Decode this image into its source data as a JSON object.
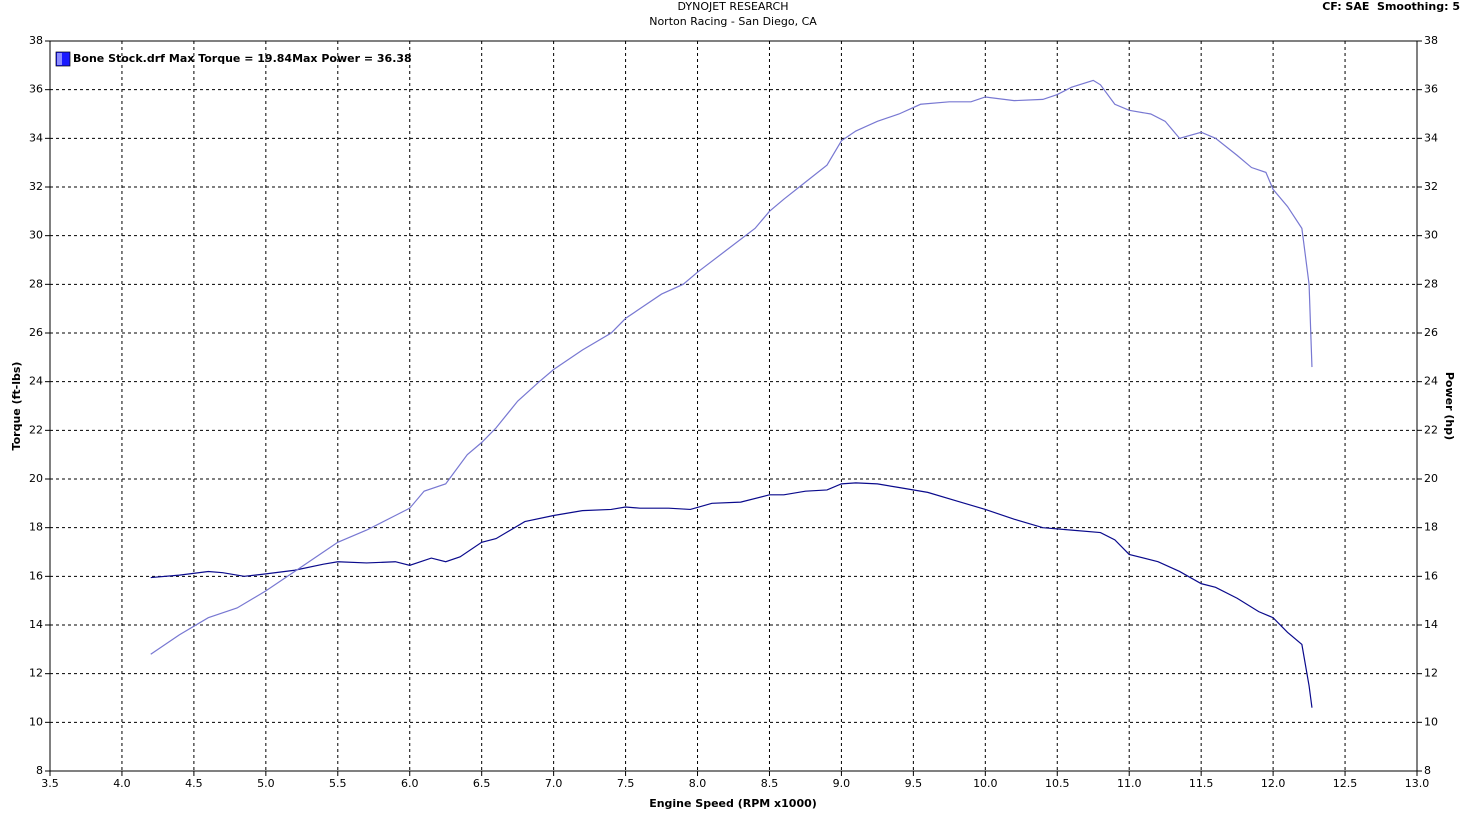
{
  "chart_data": {
    "type": "line",
    "title": "DYNOJET RESEARCH",
    "subtitle": "Norton Racing - San Diego, CA",
    "corner_note": "CF: SAE  Smoothing: 5",
    "x_label": "Engine Speed (RPM x1000)",
    "y_label": "Torque (ft-lbs)",
    "y2_label": "Power (hp)",
    "legend_label": "Bone Stock.drf",
    "annotations": [
      "Max Torque = 19.84",
      "Max Power = 36.38"
    ],
    "legend_color": "#1a1aff",
    "grid": true,
    "xlim": [
      3.5,
      13.0
    ],
    "xticks": [
      3.5,
      {
        "value": 4,
        "label": "4.0"
      },
      4.5,
      {
        "value": 5,
        "label": "5.0"
      },
      5.5,
      {
        "value": 6,
        "label": "6.0"
      },
      6.5,
      {
        "value": 7,
        "label": "7.0"
      },
      7.5,
      {
        "value": 8,
        "label": "8.0"
      },
      8.5,
      {
        "value": 9,
        "label": "9.0"
      },
      9.5,
      {
        "value": 10,
        "label": "10.0"
      },
      10.5,
      {
        "value": 11,
        "label": "11.0"
      },
      11.5,
      {
        "value": 12,
        "label": "12.0"
      },
      12.5,
      {
        "value": 13,
        "label": "13.0"
      }
    ],
    "ylim": [
      8,
      38
    ],
    "yticks": [
      8,
      10,
      12,
      14,
      16,
      18,
      20,
      22,
      24,
      26,
      28,
      30,
      32,
      34,
      36,
      38
    ],
    "y2lim": [
      8,
      38
    ],
    "y2ticks": [
      8,
      10,
      12,
      14,
      16,
      18,
      20,
      22,
      24,
      26,
      28,
      30,
      32,
      34,
      36,
      38
    ],
    "series": [
      {
        "color": "#0a0a8c",
        "x": [
          4.2,
          4.4,
          4.6,
          4.7,
          4.85,
          5.0,
          5.2,
          5.4,
          5.5,
          5.7,
          5.9,
          6.0,
          6.15,
          6.25,
          6.35,
          6.5,
          6.6,
          6.8,
          7.0,
          7.2,
          7.4,
          7.5,
          7.6,
          7.8,
          7.95,
          8.1,
          8.3,
          8.5,
          8.6,
          8.75,
          8.9,
          9.0,
          9.1,
          9.25,
          9.4,
          9.6,
          9.8,
          10.0,
          10.2,
          10.4,
          10.6,
          10.8,
          10.9,
          11.0,
          11.2,
          11.35,
          11.5,
          11.6,
          11.75,
          11.9,
          12.0,
          12.1,
          12.2,
          12.25,
          12.27
        ],
        "values": [
          15.95,
          16.05,
          16.2,
          16.15,
          16.0,
          16.1,
          16.25,
          16.5,
          16.6,
          16.55,
          16.6,
          16.45,
          16.75,
          16.6,
          16.8,
          17.4,
          17.55,
          18.25,
          18.5,
          18.7,
          18.75,
          18.85,
          18.8,
          18.8,
          18.75,
          19.0,
          19.05,
          19.35,
          19.35,
          19.5,
          19.55,
          19.8,
          19.84,
          19.8,
          19.65,
          19.45,
          19.1,
          18.75,
          18.35,
          18.0,
          17.9,
          17.8,
          17.5,
          16.9,
          16.6,
          16.2,
          15.7,
          15.55,
          15.1,
          14.55,
          14.3,
          13.7,
          13.2,
          11.5,
          10.6
        ]
      },
      {
        "color": "#7878d2",
        "axis": "y2",
        "x": [
          4.2,
          4.4,
          4.6,
          4.8,
          5.0,
          5.2,
          5.4,
          5.5,
          5.7,
          5.9,
          6.0,
          6.1,
          6.25,
          6.4,
          6.5,
          6.6,
          6.75,
          6.9,
          7.0,
          7.2,
          7.4,
          7.5,
          7.6,
          7.75,
          7.9,
          8.0,
          8.2,
          8.4,
          8.5,
          8.6,
          8.75,
          8.9,
          9.0,
          9.1,
          9.25,
          9.4,
          9.55,
          9.75,
          9.9,
          10.0,
          10.2,
          10.4,
          10.5,
          10.6,
          10.75,
          10.8,
          10.9,
          11.0,
          11.15,
          11.25,
          11.35,
          11.5,
          11.6,
          11.75,
          11.85,
          11.95,
          12.0,
          12.1,
          12.2,
          12.25,
          12.27
        ],
        "values": [
          12.8,
          13.6,
          14.3,
          14.7,
          15.4,
          16.2,
          17.0,
          17.4,
          17.9,
          18.5,
          18.8,
          19.5,
          19.8,
          21.0,
          21.5,
          22.1,
          23.2,
          24.0,
          24.5,
          25.3,
          26.0,
          26.6,
          27.0,
          27.6,
          28.0,
          28.5,
          29.4,
          30.3,
          31.0,
          31.5,
          32.2,
          32.9,
          33.9,
          34.3,
          34.7,
          35.0,
          35.4,
          35.5,
          35.5,
          35.7,
          35.55,
          35.6,
          35.8,
          36.1,
          36.38,
          36.2,
          35.4,
          35.15,
          35.0,
          34.7,
          34.0,
          34.25,
          34.0,
          33.3,
          32.8,
          32.6,
          31.9,
          31.2,
          30.3,
          28.0,
          24.6
        ]
      }
    ]
  }
}
